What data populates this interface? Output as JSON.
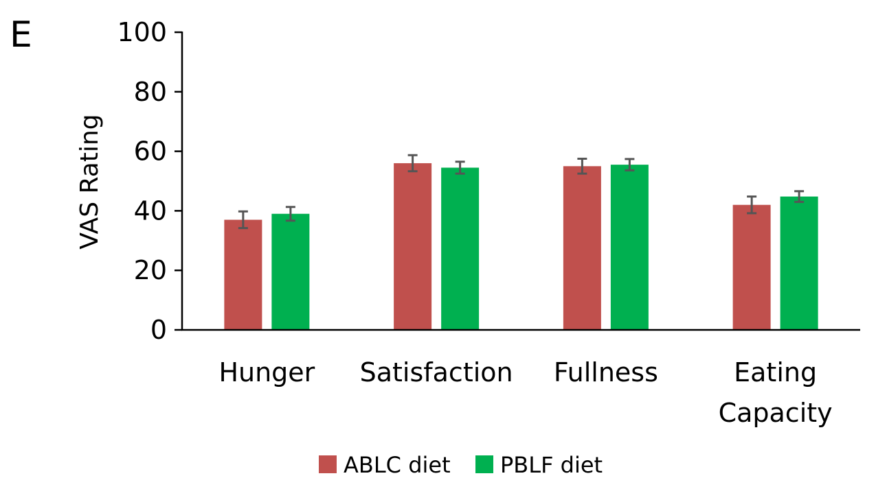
{
  "panel_label": "E",
  "chart_data": {
    "type": "bar",
    "title": "",
    "xlabel": "",
    "ylabel": "VAS Rating",
    "ylim": [
      0,
      100
    ],
    "yticks": [
      0,
      20,
      40,
      60,
      80,
      100
    ],
    "categories": [
      [
        "Hunger"
      ],
      [
        "Satisfaction"
      ],
      [
        "Fullness"
      ],
      [
        "Eating",
        "Capacity"
      ]
    ],
    "series": [
      {
        "name": "ABLC diet",
        "color": "#c0504d",
        "values": [
          37,
          56,
          55,
          42
        ],
        "errors": [
          2.8,
          2.7,
          2.5,
          2.8
        ]
      },
      {
        "name": "PBLF diet",
        "color": "#00b050",
        "values": [
          39,
          54.5,
          55.5,
          44.8
        ],
        "errors": [
          2.3,
          2.0,
          1.9,
          1.8
        ]
      }
    ],
    "legend_position": "bottom-center",
    "grid": false
  }
}
